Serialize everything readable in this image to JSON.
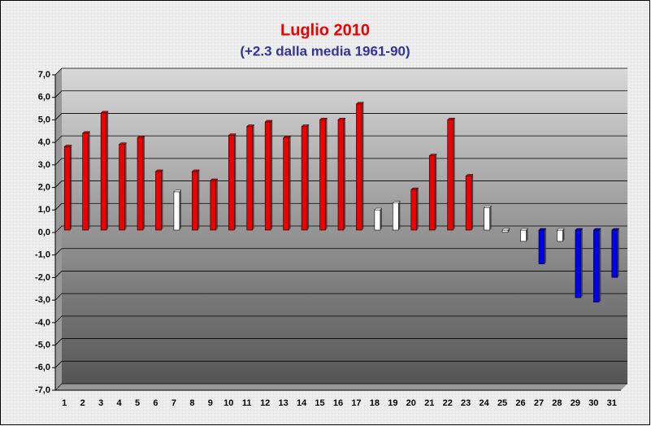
{
  "chart_data": {
    "type": "bar",
    "title": "Luglio 2010",
    "subtitle": "(+2.3 dalla media 1961-90)",
    "categories": [
      "1",
      "2",
      "3",
      "4",
      "5",
      "6",
      "7",
      "8",
      "9",
      "10",
      "11",
      "12",
      "13",
      "14",
      "15",
      "16",
      "17",
      "18",
      "19",
      "20",
      "21",
      "22",
      "23",
      "24",
      "25",
      "26",
      "27",
      "28",
      "29",
      "30",
      "31"
    ],
    "values": [
      3.7,
      4.3,
      5.2,
      3.8,
      4.1,
      2.6,
      1.7,
      2.6,
      2.2,
      4.2,
      4.6,
      4.8,
      4.1,
      4.6,
      4.9,
      4.9,
      5.6,
      0.9,
      1.2,
      1.8,
      3.3,
      4.9,
      2.4,
      1.0,
      -0.1,
      -0.5,
      -1.5,
      -0.5,
      -3.0,
      -3.2,
      -2.1
    ],
    "colors": [
      "#ee0000",
      "#ee0000",
      "#ee0000",
      "#ee0000",
      "#ee0000",
      "#ee0000",
      "#ffffff",
      "#ee0000",
      "#ee0000",
      "#ee0000",
      "#ee0000",
      "#ee0000",
      "#ee0000",
      "#ee0000",
      "#ee0000",
      "#ee0000",
      "#ee0000",
      "#ffffff",
      "#ffffff",
      "#ee0000",
      "#ee0000",
      "#ee0000",
      "#ee0000",
      "#ffffff",
      "#ffffff",
      "#ffffff",
      "#0000ee",
      "#ffffff",
      "#0000ee",
      "#0000ee",
      "#0000ee"
    ],
    "ylim": [
      -7,
      7
    ],
    "yticks": [
      {
        "value": -7,
        "label": "-7,0"
      },
      {
        "value": -6,
        "label": "-6,0"
      },
      {
        "value": -5,
        "label": "-5,0"
      },
      {
        "value": -4,
        "label": "-4,0"
      },
      {
        "value": -3,
        "label": "-3,0"
      },
      {
        "value": -2,
        "label": "-2,0"
      },
      {
        "value": -1,
        "label": "-1,0"
      },
      {
        "value": 0,
        "label": "0,0"
      },
      {
        "value": 1,
        "label": "1,0"
      },
      {
        "value": 2,
        "label": "2,0"
      },
      {
        "value": 3,
        "label": "3,0"
      },
      {
        "value": 4,
        "label": "4,0"
      },
      {
        "value": 5,
        "label": "5,0"
      },
      {
        "value": 6,
        "label": "6,0"
      },
      {
        "value": 7,
        "label": "7,0"
      }
    ],
    "grid": true
  }
}
